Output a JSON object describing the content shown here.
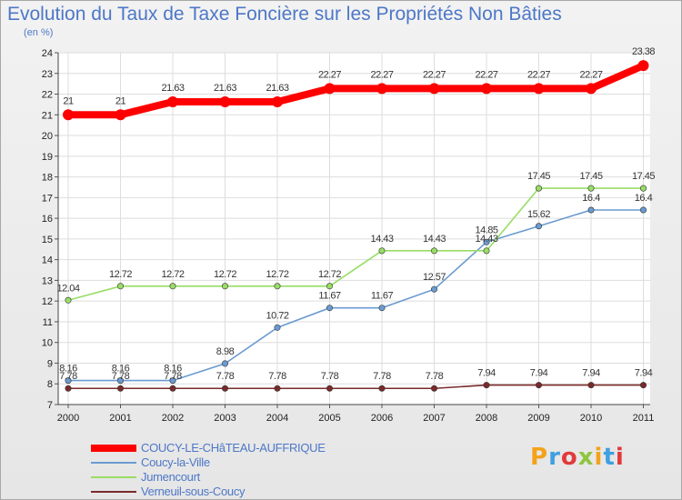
{
  "chart_data": {
    "type": "line",
    "title": "Evolution du Taux de Taxe Foncière sur les Propriétés Non Bâties",
    "ylabel": "(en %)",
    "xlabel": "",
    "ylim": [
      7,
      24
    ],
    "yticks": [
      "7",
      "8",
      "9",
      "10",
      "11",
      "12",
      "13",
      "14",
      "15",
      "16",
      "17",
      "18",
      "19",
      "20",
      "21",
      "22",
      "23",
      "24"
    ],
    "x": [
      "2000",
      "2001",
      "2002",
      "2003",
      "2004",
      "2005",
      "2006",
      "2007",
      "2008",
      "2009",
      "2010",
      "2011"
    ],
    "series": [
      {
        "name": "COUCY-LE-CHâTEAU-AUFFRIQUE",
        "color": "#ff0000",
        "values": [
          21,
          21,
          21.63,
          21.63,
          21.63,
          22.27,
          22.27,
          22.27,
          22.27,
          22.27,
          22.27,
          23.38
        ],
        "labels": [
          "21",
          "21",
          "21.63",
          "21.63",
          "21.63",
          "22.27",
          "22.27",
          "22.27",
          "22.27",
          "22.27",
          "22.27",
          "23.38"
        ]
      },
      {
        "name": "Coucy-la-Ville",
        "color": "#6a9bd1",
        "values": [
          8.16,
          8.16,
          8.16,
          8.98,
          10.72,
          11.67,
          11.67,
          12.57,
          14.85,
          15.62,
          16.4,
          16.4
        ],
        "labels": [
          "8.16",
          "8.16",
          "8.16",
          "8.98",
          "10.72",
          "11.67",
          "11.67",
          "12.57",
          "14.85",
          "15.62",
          "16.4",
          "16.4"
        ]
      },
      {
        "name": "Jumencourt",
        "color": "#99dd66",
        "values": [
          12.04,
          12.72,
          12.72,
          12.72,
          12.72,
          12.72,
          14.43,
          14.43,
          14.43,
          17.45,
          17.45,
          17.45
        ],
        "labels": [
          "12.04",
          "12.72",
          "12.72",
          "12.72",
          "12.72",
          "12.72",
          "14.43",
          "14.43",
          "14.43",
          "17.45",
          "17.45",
          "17.45"
        ]
      },
      {
        "name": "Verneuil-sous-Coucy",
        "color": "#7a2a2a",
        "values": [
          7.78,
          7.78,
          7.78,
          7.78,
          7.78,
          7.78,
          7.78,
          7.78,
          7.94,
          7.94,
          7.94,
          7.94
        ],
        "labels": [
          "7.78",
          "7.78",
          "7.78",
          "7.78",
          "7.78",
          "7.78",
          "7.78",
          "7.78",
          "7.94",
          "7.94",
          "7.94",
          "7.94"
        ]
      }
    ]
  },
  "branding": {
    "logo_text": "Proxiti",
    "logo_colors": [
      "#f4a21b",
      "#3fa0e0",
      "#e23a3a",
      "#8ec63f",
      "#f4a21b",
      "#3fa0e0",
      "#e23a3a"
    ]
  }
}
